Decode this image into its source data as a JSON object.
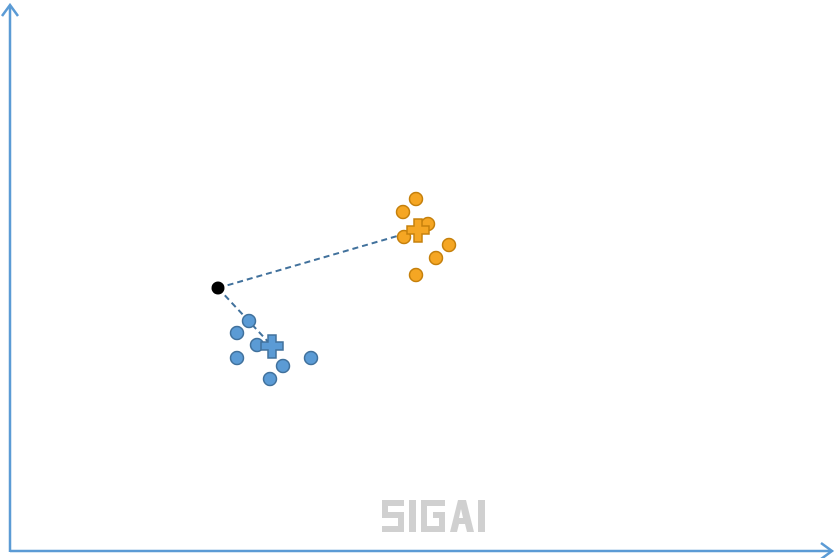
{
  "diagram": {
    "watermark_text": "SIGAI",
    "colors": {
      "axis": "#5b9bd5",
      "blue": "#5b9bd5",
      "blue_stroke": "#41719c",
      "orange": "#f5a623",
      "orange_stroke": "#c5800c",
      "query": "#000000",
      "dash": "#41719c",
      "watermark": "#d0d0d0"
    },
    "clusters": [
      {
        "name": "blue",
        "points": 8,
        "centroid_marker": "plus-icon"
      },
      {
        "name": "orange",
        "points": 8,
        "centroid_marker": "plus-icon"
      }
    ],
    "query_point": "black-dot",
    "connections": [
      "query-to-blue-centroid",
      "query-to-orange-centroid"
    ]
  }
}
